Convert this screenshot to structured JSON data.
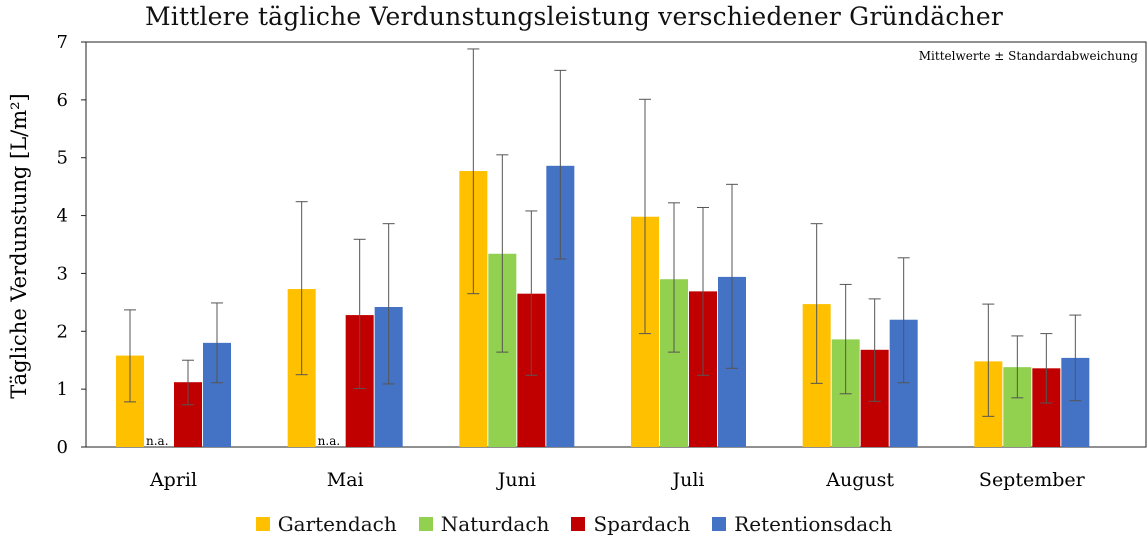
{
  "chart_data": {
    "type": "bar",
    "title": "Mittlere tägliche Verdunstungsleistung  verschiedener Gründächer",
    "ylabel": "Tägliche Verdunstung [L/m²]",
    "xlabel": "",
    "annotation": "Mittelwerte ± Standardabweichung",
    "na_label": "n.a.",
    "ylim": [
      0,
      7
    ],
    "yticks": [
      "0",
      "1",
      "2",
      "3",
      "4",
      "5",
      "6",
      "7"
    ],
    "categories": [
      "April",
      "Mai",
      "Juni",
      "Juli",
      "August",
      "September"
    ],
    "legend_position": "bottom",
    "series": [
      {
        "name": "Gartendach",
        "color": "#FFC000",
        "values": [
          1.58,
          2.73,
          4.77,
          3.98,
          2.47,
          1.48
        ],
        "err_low": [
          0.78,
          1.25,
          2.65,
          1.96,
          1.1,
          0.53
        ],
        "err_high": [
          2.37,
          4.24,
          6.88,
          6.01,
          3.86,
          2.47
        ]
      },
      {
        "name": "Naturdach",
        "color": "#92D050",
        "values": [
          null,
          null,
          3.34,
          2.9,
          1.86,
          1.38
        ],
        "err_low": [
          null,
          null,
          1.64,
          1.64,
          0.92,
          0.85
        ],
        "err_high": [
          null,
          null,
          5.05,
          4.22,
          2.81,
          1.92
        ]
      },
      {
        "name": "Spardach",
        "color": "#C00000",
        "values": [
          1.12,
          2.28,
          2.65,
          2.69,
          1.68,
          1.36
        ],
        "err_low": [
          0.73,
          1.01,
          1.24,
          1.24,
          0.79,
          0.76
        ],
        "err_high": [
          1.5,
          3.59,
          4.08,
          4.14,
          2.56,
          1.96
        ]
      },
      {
        "name": "Retentionsdach",
        "color": "#4472C4",
        "values": [
          1.8,
          2.42,
          4.86,
          2.94,
          2.2,
          1.54
        ],
        "err_low": [
          1.11,
          1.09,
          3.25,
          1.36,
          1.11,
          0.8
        ],
        "err_high": [
          2.49,
          3.86,
          6.51,
          4.54,
          3.27,
          2.28
        ]
      }
    ]
  }
}
